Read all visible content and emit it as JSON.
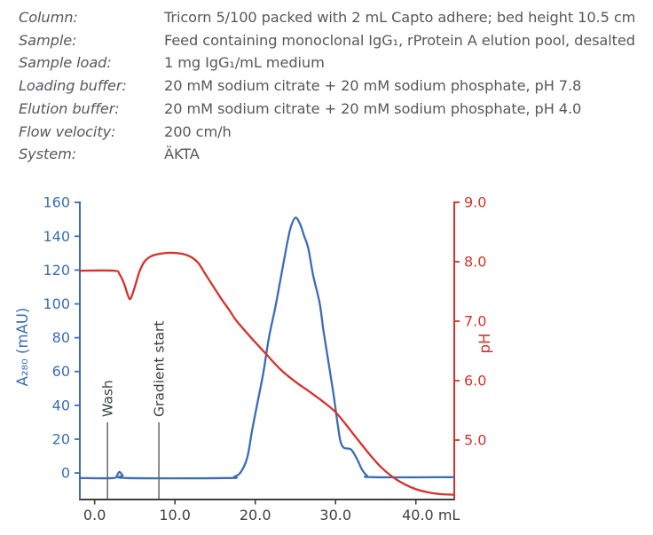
{
  "header": {
    "rows": [
      {
        "label": "Column:",
        "value": "Tricorn 5/100 packed with 2 mL Capto adhere; bed height 10.5 cm"
      },
      {
        "label": "Sample:",
        "value": "Feed containing monoclonal IgG₁, rProtein A elution pool, desalted"
      },
      {
        "label": "Sample load:",
        "value": "1 mg IgG₁/mL medium"
      },
      {
        "label": "Loading buffer:",
        "value": "20 mM sodium citrate + 20 mM sodium phosphate, pH 7.8"
      },
      {
        "label": "Elution buffer:",
        "value": "20 mM sodium citrate + 20 mM sodium phosphate, pH 4.0"
      },
      {
        "label": "Flow velocity:",
        "value": "200 cm/h"
      },
      {
        "label": "System:",
        "value": "ÄKTA"
      }
    ]
  },
  "colors": {
    "absorbance_blue": "#3a6db5",
    "ph_red": "#d8312a",
    "axis_dark": "#3f4041",
    "text_gray": "#57585b"
  },
  "chart_data": {
    "type": "line",
    "title": "",
    "grid": false,
    "legend": "none",
    "x_axis": {
      "unit": "mL",
      "range": [
        -1.84,
        44.78
      ],
      "ticks": [
        0,
        10,
        20,
        30,
        40
      ],
      "tick_labels": [
        "0.0",
        "10.0",
        "20.0",
        "30.0",
        "40.0 mL"
      ]
    },
    "y_left": {
      "label": "A₂₈₀ (mAU)",
      "color": "#3a6db5",
      "range": [
        -15.7,
        160.1
      ],
      "ticks": [
        0,
        20,
        40,
        60,
        80,
        100,
        120,
        140,
        160
      ],
      "tick_labels": [
        "0",
        "20",
        "40",
        "60",
        "80",
        "100",
        "120",
        "140",
        "160"
      ]
    },
    "y_right": {
      "label": "pH",
      "color": "#d8312a",
      "range": [
        4.0,
        9.0
      ],
      "ticks": [
        5,
        6,
        7,
        8,
        9
      ],
      "tick_labels": [
        "5.0",
        "6.0",
        "7.0",
        "8.0",
        "9.0"
      ]
    },
    "annotations": [
      {
        "label": "Wash",
        "x": 1.6
      },
      {
        "label": "Gradient start",
        "x": 8.0
      }
    ],
    "series": [
      {
        "name": "A280 absorbance",
        "axis": "left",
        "color": "#3a6db5",
        "points": [
          [
            -1.8,
            -3
          ],
          [
            2.3,
            -3
          ],
          [
            2.8,
            -1.2
          ],
          [
            3.1,
            0.6
          ],
          [
            3.5,
            -1.5
          ],
          [
            4.0,
            -3
          ],
          [
            16.5,
            -3
          ],
          [
            17.4,
            -2.2
          ],
          [
            18.2,
            0.5
          ],
          [
            19.0,
            9
          ],
          [
            19.6,
            25
          ],
          [
            20.3,
            42
          ],
          [
            21.0,
            59
          ],
          [
            21.7,
            80
          ],
          [
            22.5,
            98
          ],
          [
            23.2,
            116
          ],
          [
            23.9,
            134
          ],
          [
            24.4,
            145
          ],
          [
            25.0,
            151
          ],
          [
            25.6,
            147
          ],
          [
            26.1,
            140
          ],
          [
            26.6,
            133
          ],
          [
            27.2,
            117
          ],
          [
            28.0,
            101
          ],
          [
            28.5,
            84
          ],
          [
            29.1,
            66
          ],
          [
            29.7,
            48
          ],
          [
            30.2,
            31
          ],
          [
            30.6,
            19
          ],
          [
            31.0,
            15
          ],
          [
            31.5,
            14.5
          ],
          [
            31.9,
            14
          ],
          [
            32.3,
            11.5
          ],
          [
            32.8,
            7
          ],
          [
            33.3,
            2
          ],
          [
            33.9,
            -1.5
          ],
          [
            34.6,
            -2.5
          ],
          [
            44.7,
            -2.5
          ]
        ]
      },
      {
        "name": "pH",
        "axis": "right",
        "color": "#d8312a",
        "points": [
          [
            -1.8,
            7.85
          ],
          [
            2.4,
            7.85
          ],
          [
            3.1,
            7.79
          ],
          [
            3.7,
            7.62
          ],
          [
            4.1,
            7.45
          ],
          [
            4.4,
            7.37
          ],
          [
            4.7,
            7.45
          ],
          [
            5.1,
            7.62
          ],
          [
            5.6,
            7.84
          ],
          [
            6.2,
            8.0
          ],
          [
            7.0,
            8.09
          ],
          [
            8.0,
            8.13
          ],
          [
            9.5,
            8.15
          ],
          [
            11.0,
            8.13
          ],
          [
            12.0,
            8.08
          ],
          [
            12.9,
            7.98
          ],
          [
            13.8,
            7.79
          ],
          [
            14.8,
            7.58
          ],
          [
            15.8,
            7.37
          ],
          [
            16.8,
            7.18
          ],
          [
            17.7,
            7.0
          ],
          [
            19.5,
            6.72
          ],
          [
            21.4,
            6.44
          ],
          [
            23.2,
            6.18
          ],
          [
            25.0,
            5.98
          ],
          [
            26.9,
            5.8
          ],
          [
            28.7,
            5.62
          ],
          [
            30.0,
            5.47
          ],
          [
            31.3,
            5.26
          ],
          [
            32.8,
            5.0
          ],
          [
            34.3,
            4.75
          ],
          [
            35.7,
            4.54
          ],
          [
            37.2,
            4.37
          ],
          [
            38.7,
            4.25
          ],
          [
            40.1,
            4.17
          ],
          [
            41.6,
            4.12
          ],
          [
            43.1,
            4.09
          ],
          [
            44.7,
            4.08
          ]
        ]
      }
    ]
  }
}
